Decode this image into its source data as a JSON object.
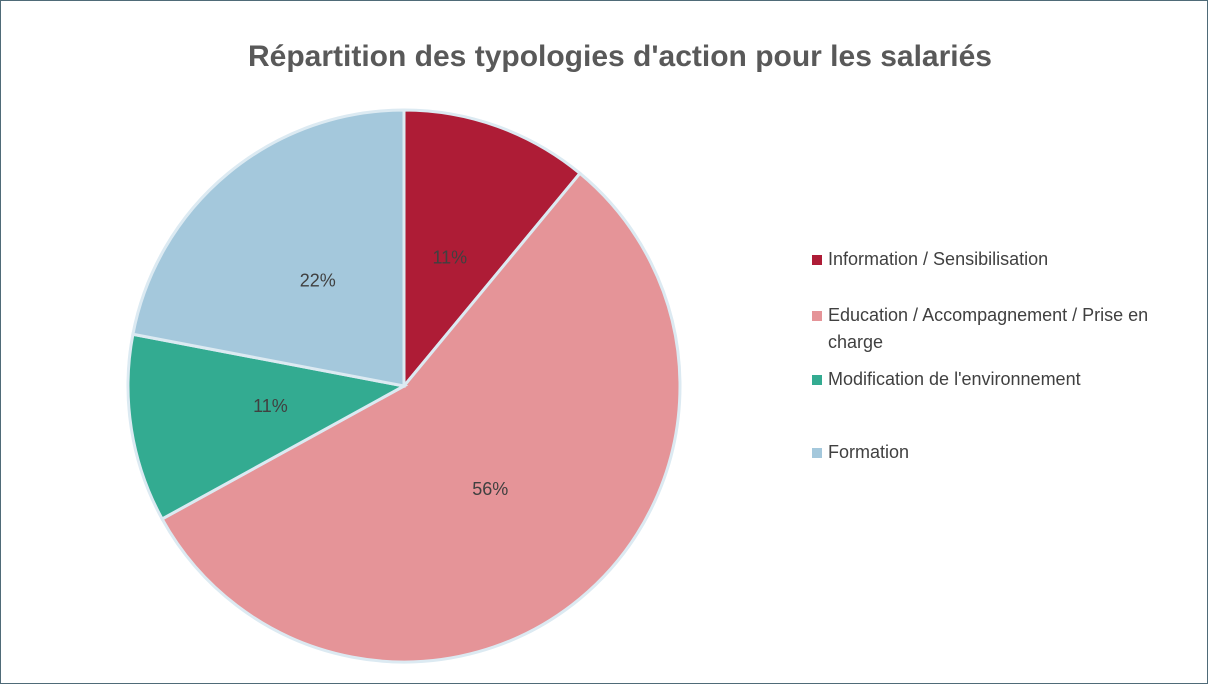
{
  "chart_data": {
    "type": "pie",
    "title": "Répartition des typologies d'action pour les salariés",
    "categories": [
      "Information / Sensibilisation",
      "Education / Accompagnement / Prise en charge",
      "Modification de l'environnement",
      "Formation"
    ],
    "values": [
      11,
      56,
      11,
      22
    ],
    "value_labels": [
      "11%",
      "56%",
      "11%",
      "22%"
    ],
    "colors": [
      "#ae1c36",
      "#e59498",
      "#33ab91",
      "#a4c8dc"
    ],
    "legend": "right"
  }
}
